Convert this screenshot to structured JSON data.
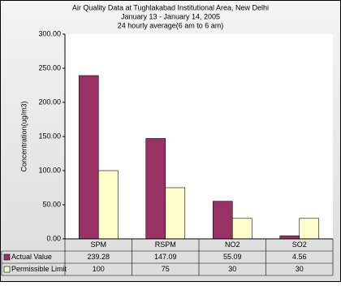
{
  "chart_data": {
    "type": "bar",
    "title": "Air Quality Data at Tughlakabad Institutional Area, New Delhi",
    "subtitle": [
      "January 13  - January 14, 2005",
      "24 hourly average(6 am to 6 am)"
    ],
    "y_label": "Concentration(ug/m3)",
    "categories": [
      "SPM",
      "RSPM",
      "NO2",
      "SO2"
    ],
    "series": [
      {
        "name": "Actual Value",
        "color": "#993366",
        "values": [
          239.28,
          147.09,
          55.09,
          4.56
        ]
      },
      {
        "name": "Permissible Limit",
        "color": "#ffffcc",
        "values": [
          100,
          75,
          30,
          30
        ]
      }
    ],
    "ylim": [
      0,
      300
    ],
    "yticks": [
      {
        "value": 0,
        "label": "0.00"
      },
      {
        "value": 50,
        "label": "50.00"
      },
      {
        "value": 100,
        "label": "100.00"
      },
      {
        "value": 150,
        "label": "150.00"
      },
      {
        "value": 200,
        "label": "200.00"
      },
      {
        "value": 250,
        "label": "250.00"
      },
      {
        "value": 300,
        "label": "300.00"
      }
    ],
    "grid": false
  }
}
